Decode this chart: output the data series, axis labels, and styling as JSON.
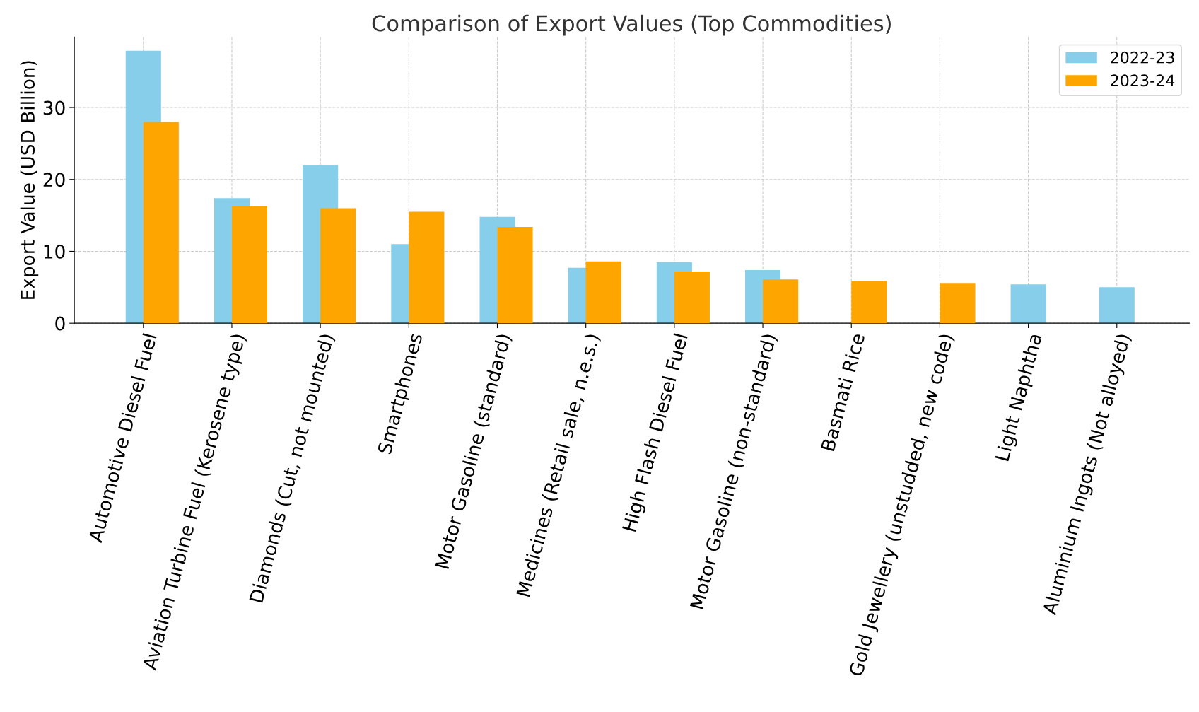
{
  "chart_data": {
    "type": "bar",
    "title": "Comparison of Export Values (Top Commodities)",
    "ylabel": "Export Value (USD Billion)",
    "categories": [
      "Automotive Diesel Fuel",
      "Aviation Turbine Fuel (Kerosene type)",
      "Diamonds (Cut, not mounted)",
      "Smartphones",
      "Motor Gasoline (standard)",
      "Medicines (Retail sale, n.e.s.)",
      "High Flash Diesel Fuel",
      "Motor Gasoline (non-standard)",
      "Basmati Rice",
      "Gold Jewellery (unstudded, new code)",
      "Light Naphtha",
      "Aluminium Ingots (Not alloyed)"
    ],
    "series": [
      {
        "name": "2022-23",
        "color": "#87ceeb",
        "values": [
          37.9,
          17.4,
          22.0,
          11.0,
          14.8,
          7.7,
          8.5,
          7.4,
          null,
          null,
          5.4,
          5.0
        ]
      },
      {
        "name": "2023-24",
        "color": "#ffa500",
        "values": [
          28.0,
          16.3,
          16.0,
          15.5,
          13.4,
          8.6,
          7.2,
          6.1,
          5.9,
          5.6,
          null,
          null
        ]
      }
    ],
    "ylim": [
      0,
      39.8
    ],
    "yticks": [
      0,
      10,
      20,
      30
    ],
    "grid": true,
    "legend": "top right"
  }
}
